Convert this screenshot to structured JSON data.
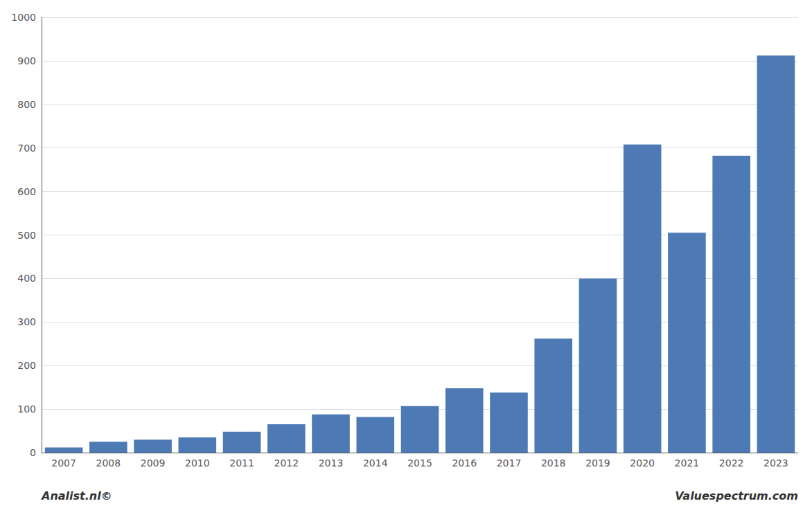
{
  "chart_data": {
    "type": "bar",
    "categories": [
      "2007",
      "2008",
      "2009",
      "2010",
      "2011",
      "2012",
      "2013",
      "2014",
      "2015",
      "2016",
      "2017",
      "2018",
      "2019",
      "2020",
      "2021",
      "2022",
      "2023"
    ],
    "values": [
      12,
      25,
      30,
      35,
      48,
      65,
      88,
      82,
      107,
      148,
      138,
      262,
      400,
      708,
      505,
      682,
      912
    ],
    "color": "#4d7ab5",
    "ylim": [
      0,
      1000
    ],
    "yticks": [
      0,
      100,
      200,
      300,
      400,
      500,
      600,
      700,
      800,
      900,
      1000
    ],
    "grid": true,
    "annotations": [
      "Analist.nl©",
      "Valuespectrum.com"
    ]
  }
}
